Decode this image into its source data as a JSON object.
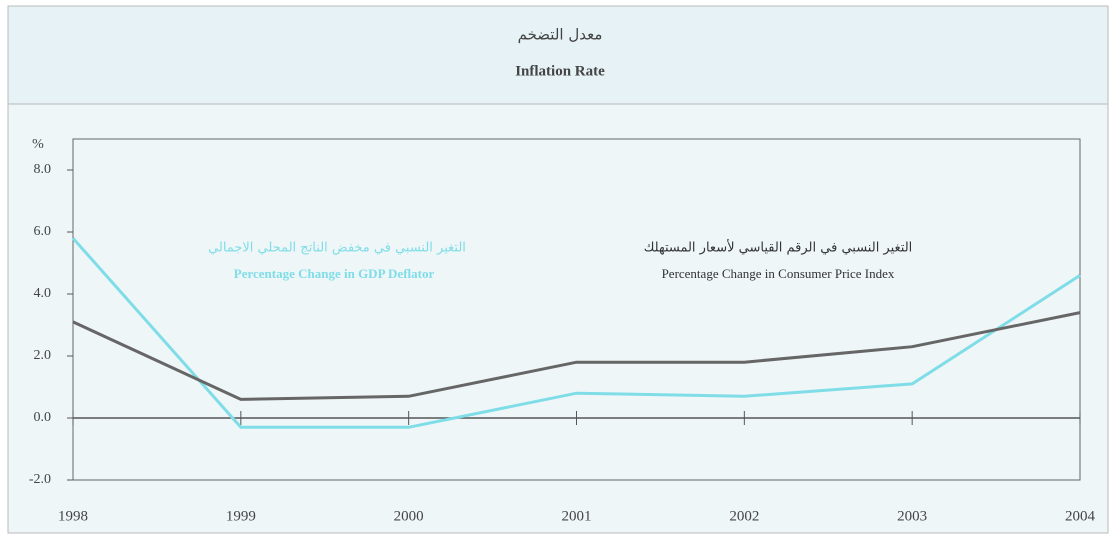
{
  "chart_data": {
    "type": "line",
    "title_ar": "معدل التضخم",
    "title": "Inflation Rate",
    "ylabel": "%",
    "x": [
      1998,
      1999,
      2000,
      2001,
      2002,
      2003,
      2004
    ],
    "xlim": [
      1998,
      2004
    ],
    "xticks": [
      1998,
      1999,
      2000,
      2001,
      2002,
      2003,
      2004
    ],
    "ylim": [
      -2,
      9
    ],
    "yticks": [
      {
        "value": -2,
        "label": "-2.0"
      },
      {
        "value": 0,
        "label": "0.0"
      },
      {
        "value": 2,
        "label": "2.0"
      },
      {
        "value": 4,
        "label": "4.0"
      },
      {
        "value": 6,
        "label": "6.0"
      },
      {
        "value": 8,
        "label": "8.0"
      }
    ],
    "grid": false,
    "series": [
      {
        "name": "Percentage Change in GDP Deflator",
        "name_ar": "التغير النسبي في مخفض الناتج المحلي الاجمالي",
        "color": "#7fdde8",
        "values": [
          5.8,
          -0.3,
          -0.3,
          0.8,
          0.7,
          1.1,
          4.6
        ]
      },
      {
        "name": "Percentage Change in Consumer Price Index",
        "name_ar": "التغير النسبي في الرقم القياسي لأسعار المستهلك",
        "color": "#666666",
        "values": [
          3.1,
          0.6,
          0.7,
          1.8,
          1.8,
          2.3,
          3.4
        ]
      }
    ]
  }
}
